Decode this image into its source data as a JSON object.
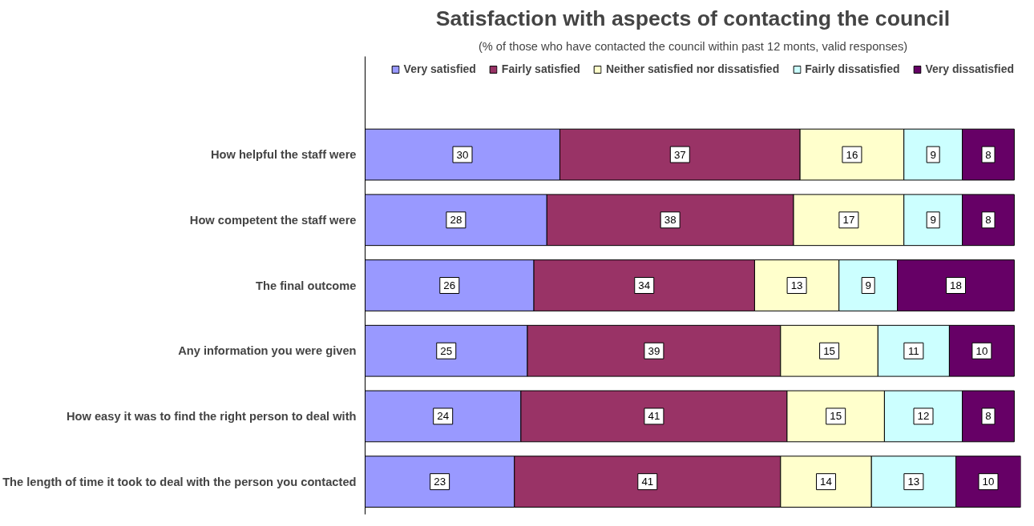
{
  "chart_data": {
    "type": "bar",
    "orientation": "horizontal",
    "stacked": true,
    "title": "Satisfaction with aspects of contacting the council",
    "subtitle": "(% of those who have contacted the council within past 12 monts, valid responses)",
    "categories": [
      "How helpful the staff were",
      "How competent the staff were",
      "The final outcome",
      "Any information you were given",
      "How easy it was to find the right person to deal with",
      "The length of time it took to deal with the person you contacted"
    ],
    "series": [
      {
        "name": "Very satisfied",
        "color": "#9999ff",
        "values": [
          30,
          28,
          26,
          25,
          24,
          23
        ]
      },
      {
        "name": "Fairly satisfied",
        "color": "#993366",
        "values": [
          37,
          38,
          34,
          39,
          41,
          41
        ]
      },
      {
        "name": "Neither satisfied nor dissatisfied",
        "color": "#ffffcc",
        "values": [
          16,
          17,
          13,
          15,
          15,
          14
        ]
      },
      {
        "name": "Fairly dissatisfied",
        "color": "#ccffff",
        "values": [
          9,
          9,
          9,
          11,
          12,
          13
        ]
      },
      {
        "name": "Very dissatisfied",
        "color": "#660066",
        "values": [
          8,
          8,
          18,
          10,
          8,
          10
        ]
      }
    ],
    "data_labels": true,
    "legend": "top",
    "grid": false,
    "tick_labels": "y"
  }
}
